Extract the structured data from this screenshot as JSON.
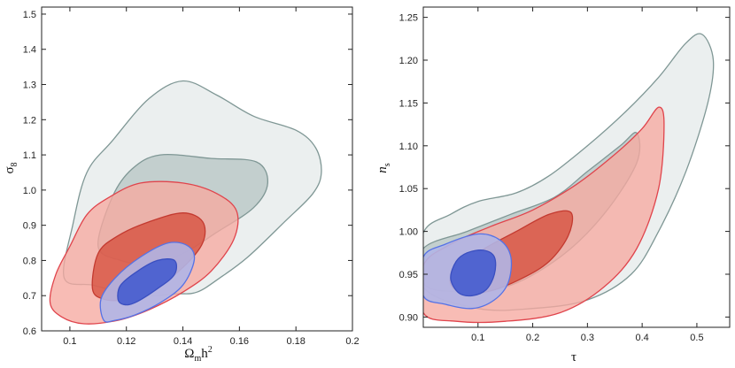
{
  "chart_data": [
    {
      "type": "contour",
      "xlim": [
        0.09,
        0.2
      ],
      "ylim": [
        0.6,
        1.52
      ],
      "xticks": [
        0.1,
        0.12,
        0.14,
        0.16,
        0.18,
        0.2
      ],
      "xtick_labels": [
        "0.1",
        "0.12",
        "0.14",
        "0.16",
        "0.18",
        "0.2"
      ],
      "yticks": [
        0.6,
        0.7,
        0.8,
        0.9,
        1.0,
        1.1,
        1.2,
        1.3,
        1.4,
        1.5
      ],
      "ytick_labels": [
        "0.6",
        "0.7",
        "0.8",
        "0.9",
        "1.0",
        "1.1",
        "1.2",
        "1.3",
        "1.4",
        "1.5"
      ],
      "xlabel": {
        "base": "Ω",
        "sub": "m",
        "rest": "h",
        "sup": "2"
      },
      "ylabel": {
        "base": "σ",
        "sub": "8"
      },
      "regions": [
        {
          "name": "grey-outer",
          "fill": "#e9eded",
          "stroke": "#7f9795",
          "opacity": 0.9,
          "points": [
            [
              0.098,
              0.75
            ],
            [
              0.101,
              0.9
            ],
            [
              0.106,
              1.05
            ],
            [
              0.115,
              1.14
            ],
            [
              0.128,
              1.26
            ],
            [
              0.14,
              1.31
            ],
            [
              0.152,
              1.27
            ],
            [
              0.165,
              1.21
            ],
            [
              0.18,
              1.17
            ],
            [
              0.187,
              1.12
            ],
            [
              0.189,
              1.05
            ],
            [
              0.186,
              0.99
            ],
            [
              0.176,
              0.91
            ],
            [
              0.163,
              0.81
            ],
            [
              0.153,
              0.75
            ],
            [
              0.145,
              0.71
            ],
            [
              0.138,
              0.705
            ],
            [
              0.128,
              0.7
            ],
            [
              0.118,
              0.71
            ],
            [
              0.108,
              0.73
            ]
          ]
        },
        {
          "name": "grey-inner",
          "fill": "#b9c7c6",
          "stroke": "#7f9795",
          "opacity": 0.8,
          "points": [
            [
              0.11,
              0.84
            ],
            [
              0.115,
              0.98
            ],
            [
              0.122,
              1.06
            ],
            [
              0.132,
              1.1
            ],
            [
              0.15,
              1.09
            ],
            [
              0.166,
              1.08
            ],
            [
              0.17,
              1.02
            ],
            [
              0.165,
              0.95
            ],
            [
              0.152,
              0.88
            ],
            [
              0.14,
              0.82
            ],
            [
              0.128,
              0.79
            ],
            [
              0.118,
              0.8
            ]
          ]
        },
        {
          "name": "red-outer",
          "fill": "#f6a9a0",
          "stroke": "#e0444c",
          "opacity": 0.78,
          "points": [
            [
              0.093,
              0.68
            ],
            [
              0.095,
              0.76
            ],
            [
              0.1,
              0.84
            ],
            [
              0.106,
              0.93
            ],
            [
              0.114,
              0.98
            ],
            [
              0.125,
              1.02
            ],
            [
              0.14,
              1.02
            ],
            [
              0.152,
              0.99
            ],
            [
              0.159,
              0.94
            ],
            [
              0.158,
              0.86
            ],
            [
              0.15,
              0.77
            ],
            [
              0.14,
              0.71
            ],
            [
              0.128,
              0.66
            ],
            [
              0.117,
              0.63
            ],
            [
              0.105,
              0.62
            ],
            [
              0.097,
              0.64
            ]
          ]
        },
        {
          "name": "red-inner",
          "fill": "#d6503e",
          "stroke": "#c33a30",
          "opacity": 0.78,
          "points": [
            [
              0.108,
              0.72
            ],
            [
              0.11,
              0.82
            ],
            [
              0.117,
              0.87
            ],
            [
              0.128,
              0.91
            ],
            [
              0.14,
              0.935
            ],
            [
              0.147,
              0.91
            ],
            [
              0.147,
              0.85
            ],
            [
              0.14,
              0.78
            ],
            [
              0.13,
              0.72
            ],
            [
              0.12,
              0.69
            ],
            [
              0.112,
              0.69
            ]
          ]
        },
        {
          "name": "blue-outer",
          "fill": "#b0b5e6",
          "stroke": "#5572e6",
          "opacity": 0.9,
          "points": [
            [
              0.112,
              0.63
            ],
            [
              0.111,
              0.69
            ],
            [
              0.116,
              0.75
            ],
            [
              0.125,
              0.81
            ],
            [
              0.135,
              0.85
            ],
            [
              0.142,
              0.84
            ],
            [
              0.144,
              0.8
            ],
            [
              0.14,
              0.73
            ],
            [
              0.132,
              0.68
            ],
            [
              0.123,
              0.645
            ],
            [
              0.116,
              0.63
            ]
          ]
        },
        {
          "name": "blue-inner",
          "fill": "#5064d0",
          "stroke": "#3a4fc0",
          "opacity": 1,
          "points": [
            [
              0.117,
              0.69
            ],
            [
              0.118,
              0.73
            ],
            [
              0.124,
              0.77
            ],
            [
              0.131,
              0.8
            ],
            [
              0.137,
              0.8
            ],
            [
              0.137,
              0.76
            ],
            [
              0.131,
              0.72
            ],
            [
              0.123,
              0.68
            ],
            [
              0.119,
              0.675
            ]
          ]
        }
      ]
    },
    {
      "type": "contour",
      "xlim": [
        0.0,
        0.56
      ],
      "ylim": [
        0.888,
        1.262
      ],
      "xticks": [
        0.1,
        0.2,
        0.3,
        0.4,
        0.5
      ],
      "xtick_labels": [
        "0.1",
        "0.2",
        "0.3",
        "0.4",
        "0.5"
      ],
      "yticks": [
        0.9,
        0.95,
        1.0,
        1.05,
        1.1,
        1.15,
        1.2,
        1.25
      ],
      "ytick_labels": [
        "0.90",
        "0.95",
        "1.00",
        "1.05",
        "1.10",
        "1.15",
        "1.20",
        "1.25"
      ],
      "xlabel": {
        "base": "τ",
        "sub": "",
        "rest": "",
        "sup": ""
      },
      "ylabel": {
        "base": "n",
        "sub": "s"
      },
      "regions": [
        {
          "name": "grey-outer",
          "fill": "#e9eded",
          "stroke": "#7f9795",
          "opacity": 0.9,
          "points": [
            [
              0.0,
              0.998
            ],
            [
              0.05,
              1.02
            ],
            [
              0.1,
              1.035
            ],
            [
              0.17,
              1.045
            ],
            [
              0.23,
              1.065
            ],
            [
              0.3,
              1.1
            ],
            [
              0.37,
              1.14
            ],
            [
              0.43,
              1.18
            ],
            [
              0.48,
              1.22
            ],
            [
              0.51,
              1.23
            ],
            [
              0.53,
              1.2
            ],
            [
              0.52,
              1.15
            ],
            [
              0.48,
              1.07
            ],
            [
              0.43,
              1.0
            ],
            [
              0.38,
              0.95
            ],
            [
              0.3,
              0.92
            ],
            [
              0.2,
              0.91
            ],
            [
              0.1,
              0.91
            ],
            [
              0.0,
              0.935
            ]
          ]
        },
        {
          "name": "grey-inner",
          "fill": "#b9c7c6",
          "stroke": "#7f9795",
          "opacity": 0.8,
          "points": [
            [
              0.0,
              0.98
            ],
            [
              0.08,
              1.0
            ],
            [
              0.16,
              1.02
            ],
            [
              0.24,
              1.04
            ],
            [
              0.3,
              1.07
            ],
            [
              0.36,
              1.1
            ],
            [
              0.39,
              1.115
            ],
            [
              0.39,
              1.08
            ],
            [
              0.33,
              1.02
            ],
            [
              0.25,
              0.97
            ],
            [
              0.15,
              0.935
            ],
            [
              0.05,
              0.93
            ],
            [
              0.0,
              0.94
            ]
          ]
        },
        {
          "name": "red-outer",
          "fill": "#f6a9a0",
          "stroke": "#e0444c",
          "opacity": 0.78,
          "points": [
            [
              0.0,
              0.96
            ],
            [
              0.05,
              0.985
            ],
            [
              0.12,
              1.005
            ],
            [
              0.2,
              1.025
            ],
            [
              0.28,
              1.055
            ],
            [
              0.35,
              1.09
            ],
            [
              0.4,
              1.12
            ],
            [
              0.43,
              1.145
            ],
            [
              0.44,
              1.125
            ],
            [
              0.43,
              1.05
            ],
            [
              0.39,
              0.98
            ],
            [
              0.33,
              0.935
            ],
            [
              0.25,
              0.905
            ],
            [
              0.15,
              0.895
            ],
            [
              0.06,
              0.895
            ],
            [
              0.0,
              0.905
            ]
          ]
        },
        {
          "name": "red-inner",
          "fill": "#d6503e",
          "stroke": "#c33a30",
          "opacity": 0.78,
          "points": [
            [
              0.05,
              0.945
            ],
            [
              0.1,
              0.975
            ],
            [
              0.17,
              1.0
            ],
            [
              0.23,
              1.02
            ],
            [
              0.27,
              1.022
            ],
            [
              0.265,
              0.995
            ],
            [
              0.23,
              0.965
            ],
            [
              0.18,
              0.945
            ],
            [
              0.12,
              0.93
            ],
            [
              0.07,
              0.928
            ]
          ]
        },
        {
          "name": "blue-outer",
          "fill": "#b0b5e6",
          "stroke": "#5572e6",
          "opacity": 0.9,
          "points": [
            [
              0.0,
              0.925
            ],
            [
              0.0,
              0.97
            ],
            [
              0.04,
              0.985
            ],
            [
              0.1,
              0.997
            ],
            [
              0.14,
              0.99
            ],
            [
              0.16,
              0.97
            ],
            [
              0.155,
              0.94
            ],
            [
              0.13,
              0.92
            ],
            [
              0.09,
              0.91
            ],
            [
              0.04,
              0.915
            ]
          ]
        },
        {
          "name": "blue-inner",
          "fill": "#5064d0",
          "stroke": "#3a4fc0",
          "opacity": 1,
          "points": [
            [
              0.05,
              0.945
            ],
            [
              0.06,
              0.965
            ],
            [
              0.08,
              0.975
            ],
            [
              0.11,
              0.978
            ],
            [
              0.13,
              0.97
            ],
            [
              0.13,
              0.95
            ],
            [
              0.115,
              0.932
            ],
            [
              0.09,
              0.925
            ],
            [
              0.065,
              0.928
            ]
          ]
        }
      ]
    }
  ]
}
